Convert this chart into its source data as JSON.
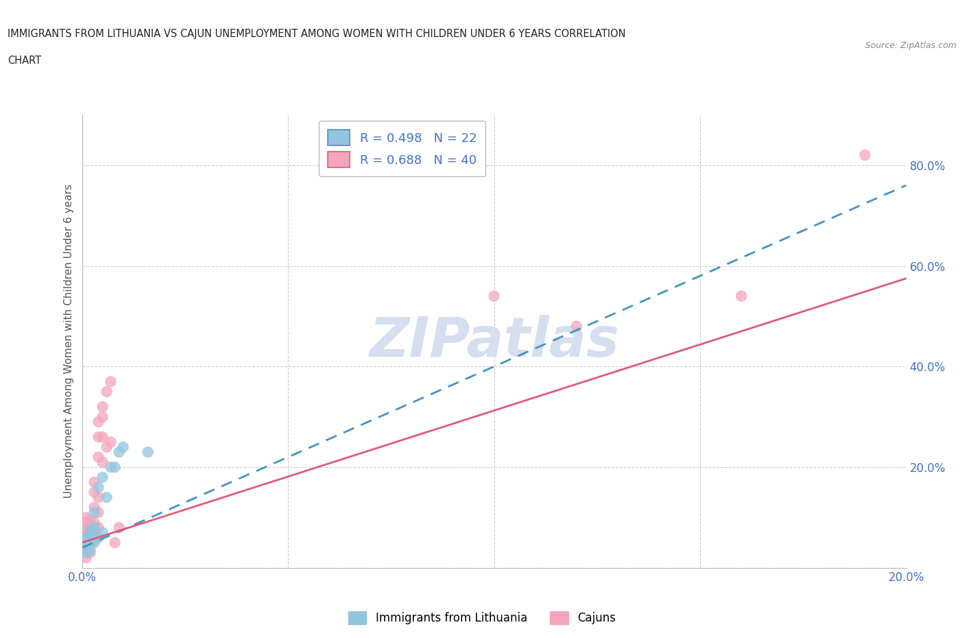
{
  "title_line1": "IMMIGRANTS FROM LITHUANIA VS CAJUN UNEMPLOYMENT AMONG WOMEN WITH CHILDREN UNDER 6 YEARS CORRELATION",
  "title_line2": "CHART",
  "source": "Source: ZipAtlas.com",
  "ylabel": "Unemployment Among Women with Children Under 6 years",
  "xlim": [
    0.0,
    0.2
  ],
  "ylim": [
    0.0,
    0.9
  ],
  "yticks": [
    0.0,
    0.2,
    0.4,
    0.6,
    0.8
  ],
  "ytick_labels": [
    "",
    "20.0%",
    "40.0%",
    "60.0%",
    "80.0%"
  ],
  "xticks": [
    0.0,
    0.05,
    0.1,
    0.15,
    0.2
  ],
  "xtick_labels": [
    "0.0%",
    "",
    "",
    "",
    "20.0%"
  ],
  "watermark": "ZIPatlas",
  "legend_r1": "R = 0.498   N = 22",
  "legend_r2": "R = 0.688   N = 40",
  "blue_color": "#92c5de",
  "pink_color": "#f4a5bc",
  "blue_line_color": "#4393c3",
  "pink_line_color": "#e05a7a",
  "blue_scatter": [
    [
      0.001,
      0.03
    ],
    [
      0.001,
      0.04
    ],
    [
      0.001,
      0.055
    ],
    [
      0.001,
      0.06
    ],
    [
      0.002,
      0.035
    ],
    [
      0.002,
      0.05
    ],
    [
      0.002,
      0.065
    ],
    [
      0.002,
      0.075
    ],
    [
      0.003,
      0.05
    ],
    [
      0.003,
      0.06
    ],
    [
      0.003,
      0.08
    ],
    [
      0.003,
      0.11
    ],
    [
      0.004,
      0.06
    ],
    [
      0.004,
      0.16
    ],
    [
      0.005,
      0.07
    ],
    [
      0.005,
      0.18
    ],
    [
      0.006,
      0.14
    ],
    [
      0.007,
      0.2
    ],
    [
      0.008,
      0.2
    ],
    [
      0.009,
      0.23
    ],
    [
      0.01,
      0.24
    ],
    [
      0.016,
      0.23
    ]
  ],
  "pink_scatter": [
    [
      0.001,
      0.02
    ],
    [
      0.001,
      0.04
    ],
    [
      0.001,
      0.05
    ],
    [
      0.001,
      0.06
    ],
    [
      0.001,
      0.075
    ],
    [
      0.001,
      0.08
    ],
    [
      0.001,
      0.09
    ],
    [
      0.001,
      0.1
    ],
    [
      0.002,
      0.03
    ],
    [
      0.002,
      0.05
    ],
    [
      0.002,
      0.06
    ],
    [
      0.002,
      0.075
    ],
    [
      0.002,
      0.085
    ],
    [
      0.002,
      0.095
    ],
    [
      0.003,
      0.055
    ],
    [
      0.003,
      0.07
    ],
    [
      0.003,
      0.09
    ],
    [
      0.003,
      0.12
    ],
    [
      0.003,
      0.15
    ],
    [
      0.003,
      0.17
    ],
    [
      0.004,
      0.08
    ],
    [
      0.004,
      0.11
    ],
    [
      0.004,
      0.14
    ],
    [
      0.004,
      0.22
    ],
    [
      0.004,
      0.26
    ],
    [
      0.004,
      0.29
    ],
    [
      0.005,
      0.21
    ],
    [
      0.005,
      0.26
    ],
    [
      0.005,
      0.3
    ],
    [
      0.005,
      0.32
    ],
    [
      0.006,
      0.24
    ],
    [
      0.006,
      0.35
    ],
    [
      0.007,
      0.25
    ],
    [
      0.007,
      0.37
    ],
    [
      0.008,
      0.05
    ],
    [
      0.009,
      0.08
    ],
    [
      0.1,
      0.54
    ],
    [
      0.12,
      0.48
    ],
    [
      0.16,
      0.54
    ],
    [
      0.19,
      0.82
    ]
  ],
  "grid_color": "#cccccc",
  "background_color": "#ffffff",
  "title_color": "#222222",
  "axis_label_color": "#555555",
  "tick_label_color": "#4472c4",
  "watermark_color": "#d5dff0",
  "legend_box_color": "#4472c4"
}
